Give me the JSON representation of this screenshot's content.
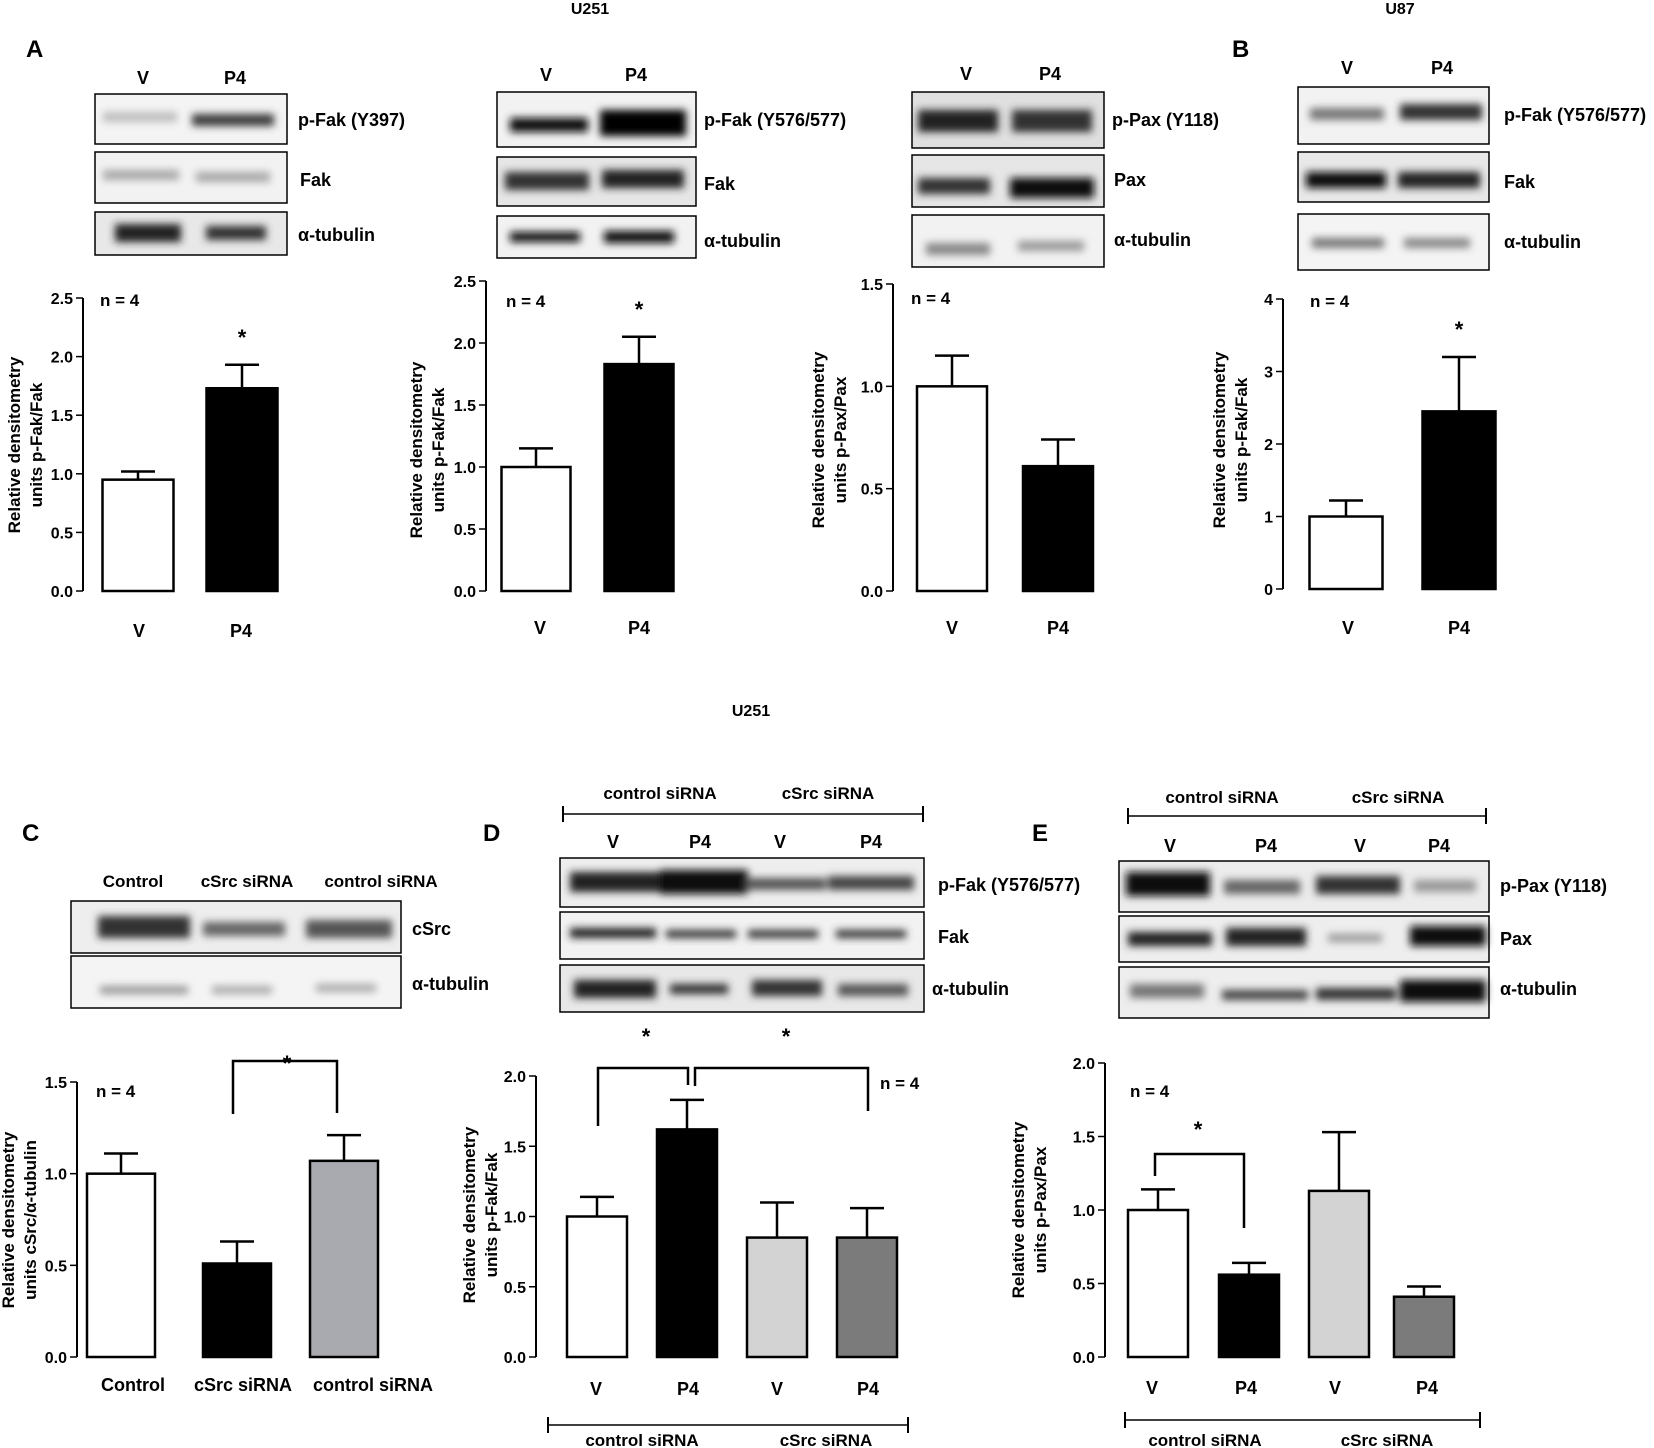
{
  "colors": {
    "white": "#ffffff",
    "black": "#000000",
    "lightgray": "#d3d3d3",
    "midgray": "#a9a9b0",
    "darkgray": "#7a7a7a",
    "stroke": "#000000"
  },
  "cell_headers": {
    "u251_top": "U251",
    "u87_top": "U87",
    "u251_bottom": "U251"
  },
  "panel_letters": {
    "A": "A",
    "B": "B",
    "C": "C",
    "D": "D",
    "E": "E"
  },
  "blots": {
    "a1": {
      "lanes": [
        "V",
        "P4"
      ],
      "rows": [
        "p-Fak (Y397)",
        "Fak",
        "α-tubulin"
      ]
    },
    "a2": {
      "lanes": [
        "V",
        "P4"
      ],
      "rows": [
        "p-Fak (Y576/577)",
        "Fak",
        "α-tubulin"
      ]
    },
    "a3": {
      "lanes": [
        "V",
        "P4"
      ],
      "rows": [
        "p-Pax (Y118)",
        "Pax",
        "α-tubulin"
      ]
    },
    "b": {
      "lanes": [
        "V",
        "P4"
      ],
      "rows": [
        "p-Fak (Y576/577)",
        "Fak",
        "α-tubulin"
      ]
    },
    "c": {
      "lanes": [
        "Control",
        "cSrc siRNA",
        "control siRNA"
      ],
      "rows": [
        "cSrc",
        "α-tubulin"
      ]
    },
    "d": {
      "groups": [
        "control siRNA",
        "cSrc siRNA"
      ],
      "lanes": [
        "V",
        "P4",
        "V",
        "P4"
      ],
      "rows": [
        "p-Fak (Y576/577)",
        "Fak",
        "α-tubulin"
      ]
    },
    "e": {
      "groups": [
        "control siRNA",
        "cSrc siRNA"
      ],
      "lanes": [
        "V",
        "P4",
        "V",
        "P4"
      ],
      "rows": [
        "p-Pax (Y118)",
        "Pax",
        "α-tubulin"
      ]
    }
  },
  "chart_data": [
    {
      "id": "a1",
      "type": "bar",
      "ylabel_line1": "Relative densitometry",
      "ylabel_line2": "units p-Fak/Fak",
      "ylim": [
        0,
        2.5
      ],
      "yticks": [
        "0.0",
        "0.5",
        "1.0",
        "1.5",
        "2.0",
        "2.5"
      ],
      "n_label": "n = 4",
      "categories": [
        "V",
        "P4"
      ],
      "values": [
        0.95,
        1.73
      ],
      "errors": [
        0.07,
        0.2
      ],
      "fills": [
        "white",
        "black"
      ],
      "stars": [
        "",
        "*"
      ],
      "groups": []
    },
    {
      "id": "a2",
      "type": "bar",
      "ylabel_line1": "Relative densitometry",
      "ylabel_line2": "units p-Fak/Fak",
      "ylim": [
        0,
        2.5
      ],
      "yticks": [
        "0.0",
        "0.5",
        "1.0",
        "1.5",
        "2.0",
        "2.5"
      ],
      "n_label": "n = 4",
      "categories": [
        "V",
        "P4"
      ],
      "values": [
        1.0,
        1.83
      ],
      "errors": [
        0.15,
        0.22
      ],
      "fills": [
        "white",
        "black"
      ],
      "stars": [
        "",
        "*"
      ],
      "groups": []
    },
    {
      "id": "a3",
      "type": "bar",
      "ylabel_line1": "Relative densitometry",
      "ylabel_line2": "units p-Pax/Pax",
      "ylim": [
        0,
        1.5
      ],
      "yticks": [
        "0.0",
        "0.5",
        "1.0",
        "1.5"
      ],
      "n_label": "n = 4",
      "categories": [
        "V",
        "P4"
      ],
      "values": [
        1.0,
        0.61
      ],
      "errors": [
        0.15,
        0.13
      ],
      "fills": [
        "white",
        "black"
      ],
      "stars": [
        "",
        ""
      ],
      "groups": []
    },
    {
      "id": "b",
      "type": "bar",
      "ylabel_line1": "Relative densitometry",
      "ylabel_line2": "units p-Fak/Fak",
      "ylim": [
        0,
        4
      ],
      "yticks": [
        "0",
        "1",
        "2",
        "3",
        "4"
      ],
      "n_label": "n = 4",
      "categories": [
        "V",
        "P4"
      ],
      "values": [
        1.0,
        2.45
      ],
      "errors": [
        0.22,
        0.75
      ],
      "fills": [
        "white",
        "black"
      ],
      "stars": [
        "",
        "*"
      ],
      "groups": []
    },
    {
      "id": "c",
      "type": "bar",
      "ylabel_line1": "Relative densitometry",
      "ylabel_line2": "units cSrc/α-tubulin",
      "ylim": [
        0,
        1.5
      ],
      "yticks": [
        "0.0",
        "0.5",
        "1.0",
        "1.5"
      ],
      "n_label": "n = 4",
      "categories": [
        "Control",
        "cSrc siRNA",
        "control siRNA"
      ],
      "values": [
        1.0,
        0.51,
        1.07
      ],
      "errors": [
        0.11,
        0.12,
        0.14
      ],
      "fills": [
        "white",
        "black",
        "midgray"
      ],
      "stars": [
        "",
        "",
        ""
      ],
      "brackets": [
        {
          "from": 1,
          "to": 2,
          "label": "*"
        }
      ],
      "groups": []
    },
    {
      "id": "d",
      "type": "bar",
      "ylabel_line1": "Relative densitometry",
      "ylabel_line2": "units p-Fak/Fak",
      "ylim": [
        0,
        2.0
      ],
      "yticks": [
        "0.0",
        "0.5",
        "1.0",
        "1.5",
        "2.0"
      ],
      "n_label": "n = 4",
      "categories": [
        "V",
        "P4",
        "V",
        "P4"
      ],
      "values": [
        1.0,
        1.62,
        0.85,
        0.85
      ],
      "errors": [
        0.14,
        0.21,
        0.25,
        0.21
      ],
      "fills": [
        "white",
        "black",
        "lightgray",
        "darkgray"
      ],
      "stars": [
        "",
        "",
        "",
        ""
      ],
      "brackets": [
        {
          "from": 0,
          "to": 1,
          "label": "*"
        },
        {
          "from": 1,
          "to": 3,
          "label": "*"
        }
      ],
      "groups": [
        "control siRNA",
        "cSrc siRNA"
      ]
    },
    {
      "id": "e",
      "type": "bar",
      "ylabel_line1": "Relative densitometry",
      "ylabel_line2": "units p-Pax/Pax",
      "ylim": [
        0,
        2.0
      ],
      "yticks": [
        "0.0",
        "0.5",
        "1.0",
        "1.5",
        "2.0"
      ],
      "n_label": "n = 4",
      "categories": [
        "V",
        "P4",
        "V",
        "P4"
      ],
      "values": [
        1.0,
        0.56,
        1.13,
        0.41
      ],
      "errors": [
        0.14,
        0.08,
        0.4,
        0.07
      ],
      "fills": [
        "white",
        "black",
        "lightgray",
        "darkgray"
      ],
      "stars": [
        "",
        "",
        "",
        ""
      ],
      "brackets": [
        {
          "from": 0,
          "to": 1,
          "label": "*"
        }
      ],
      "groups": [
        "control siRNA",
        "cSrc siRNA"
      ]
    }
  ]
}
